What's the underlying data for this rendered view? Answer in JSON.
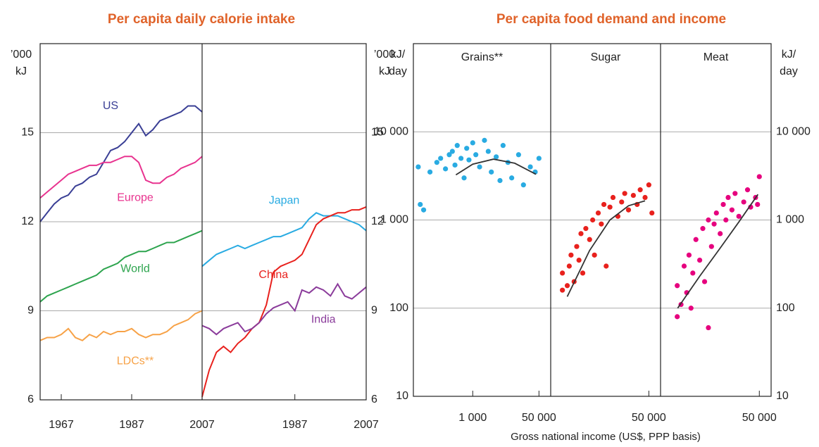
{
  "chart_data": [
    {
      "type": "line",
      "title": "Per capita daily calorie intake",
      "ylabel": [
        "’000",
        "kJ"
      ],
      "ylim": [
        6,
        18
      ],
      "yticks": [
        6,
        9,
        12,
        15
      ],
      "grid": true,
      "panels": [
        {
          "xlim": [
            1961,
            2007
          ],
          "xticks": [
            1967,
            1987,
            2007
          ],
          "x": [
            1961,
            1963,
            1965,
            1967,
            1969,
            1971,
            1973,
            1975,
            1977,
            1979,
            1981,
            1983,
            1985,
            1987,
            1989,
            1991,
            1993,
            1995,
            1997,
            1999,
            2001,
            2003,
            2005,
            2007
          ],
          "series": [
            {
              "name": "US",
              "color": "#3a3f95",
              "values": [
                12.0,
                12.3,
                12.6,
                12.8,
                12.9,
                13.2,
                13.3,
                13.5,
                13.6,
                14.0,
                14.4,
                14.5,
                14.7,
                15.0,
                15.3,
                14.9,
                15.1,
                15.4,
                15.5,
                15.6,
                15.7,
                15.9,
                15.9,
                15.7
              ]
            },
            {
              "name": "Europe",
              "color": "#e8338f",
              "values": [
                12.8,
                13.0,
                13.2,
                13.4,
                13.6,
                13.7,
                13.8,
                13.9,
                13.9,
                14.0,
                14.0,
                14.1,
                14.2,
                14.2,
                14.0,
                13.4,
                13.3,
                13.3,
                13.5,
                13.6,
                13.8,
                13.9,
                14.0,
                14.2
              ]
            },
            {
              "name": "World",
              "color": "#2da44e",
              "values": [
                9.3,
                9.5,
                9.6,
                9.7,
                9.8,
                9.9,
                10.0,
                10.1,
                10.2,
                10.4,
                10.5,
                10.6,
                10.8,
                10.9,
                11.0,
                11.0,
                11.1,
                11.2,
                11.3,
                11.3,
                11.4,
                11.5,
                11.6,
                11.7
              ]
            },
            {
              "name": "LDCs**",
              "color": "#f7a247",
              "values": [
                8.0,
                8.1,
                8.1,
                8.2,
                8.4,
                8.1,
                8.0,
                8.2,
                8.1,
                8.3,
                8.2,
                8.3,
                8.3,
                8.4,
                8.2,
                8.1,
                8.2,
                8.2,
                8.3,
                8.5,
                8.6,
                8.7,
                8.9,
                9.0
              ]
            }
          ]
        },
        {
          "xlim": [
            1961,
            2007
          ],
          "xticks": [
            1987,
            2007
          ],
          "x": [
            1961,
            1963,
            1965,
            1967,
            1969,
            1971,
            1973,
            1975,
            1977,
            1979,
            1981,
            1983,
            1985,
            1987,
            1989,
            1991,
            1993,
            1995,
            1997,
            1999,
            2001,
            2003,
            2005,
            2007
          ],
          "series": [
            {
              "name": "Japan",
              "color": "#29abe2",
              "values": [
                10.5,
                10.7,
                10.9,
                11.0,
                11.1,
                11.2,
                11.1,
                11.2,
                11.3,
                11.4,
                11.5,
                11.5,
                11.6,
                11.7,
                11.8,
                12.1,
                12.3,
                12.2,
                12.2,
                12.2,
                12.1,
                12.0,
                11.9,
                11.7
              ]
            },
            {
              "name": "China",
              "color": "#e8211d",
              "values": [
                6.1,
                7.0,
                7.6,
                7.8,
                7.6,
                7.9,
                8.1,
                8.4,
                8.6,
                9.2,
                10.3,
                10.5,
                10.6,
                10.7,
                10.9,
                11.4,
                11.9,
                12.1,
                12.2,
                12.3,
                12.3,
                12.4,
                12.4,
                12.5
              ]
            },
            {
              "name": "India",
              "color": "#8b3c9b",
              "values": [
                8.5,
                8.4,
                8.2,
                8.4,
                8.5,
                8.6,
                8.3,
                8.4,
                8.6,
                8.9,
                9.1,
                9.2,
                9.3,
                9.0,
                9.7,
                9.6,
                9.8,
                9.7,
                9.5,
                9.9,
                9.5,
                9.4,
                9.6,
                9.8
              ]
            }
          ]
        }
      ]
    },
    {
      "type": "scatter",
      "title": "Per capita food demand and income",
      "xlabel": "Gross national income (US$, PPP basis)",
      "ylabel": [
        "kJ/",
        "day"
      ],
      "log_x": true,
      "log_y": true,
      "ylim": [
        10,
        100000
      ],
      "yticks": [
        10,
        100,
        {
          "value": 1000,
          "label": "1 000"
        },
        {
          "value": 10000,
          "label": "10 000"
        }
      ],
      "grid": true,
      "panels": [
        {
          "title": "Grains**",
          "xlim": [
            30,
            100000
          ],
          "xticks": [
            {
              "value": 1000,
              "label": "1 000"
            },
            {
              "value": 50000,
              "label": "50 000"
            }
          ],
          "points": {
            "color": "#29abe2",
            "x": [
              40,
              45,
              55,
              80,
              120,
              150,
              200,
              250,
              300,
              350,
              400,
              500,
              600,
              700,
              800,
              1000,
              1200,
              1500,
              2000,
              2500,
              3000,
              4000,
              5000,
              6000,
              8000,
              10000,
              15000,
              20000,
              30000,
              40000,
              50000
            ],
            "y": [
              4000,
              1500,
              1300,
              3500,
              4500,
              5000,
              3800,
              5500,
              6000,
              4200,
              7000,
              5000,
              3000,
              6500,
              4800,
              7500,
              5500,
              4000,
              8000,
              6000,
              3500,
              5200,
              2800,
              7000,
              4500,
              3000,
              5500,
              2500,
              4000,
              3500,
              5000
            ]
          },
          "fit": {
            "color": "#333333",
            "x": [
              370,
              1000,
              3400,
              12000,
              42000
            ],
            "y": [
              3250,
              4300,
              4900,
              4400,
              3300
            ]
          }
        },
        {
          "title": "Sugar",
          "xlim": [
            150,
            100000
          ],
          "xticks": [
            {
              "value": 50000,
              "label": "50 000"
            }
          ],
          "points": {
            "color": "#e8211d",
            "x": [
              300,
              300,
              400,
              450,
              500,
              600,
              700,
              800,
              900,
              1000,
              1200,
              1500,
              1800,
              2000,
              2500,
              3000,
              3500,
              4000,
              5000,
              6000,
              8000,
              10000,
              12000,
              15000,
              20000,
              25000,
              30000,
              40000,
              50000,
              60000
            ],
            "y": [
              250,
              160,
              180,
              300,
              400,
              200,
              500,
              350,
              700,
              250,
              800,
              600,
              1000,
              400,
              1200,
              900,
              1500,
              300,
              1400,
              1800,
              1100,
              1600,
              2000,
              1300,
              1900,
              1500,
              2200,
              1800,
              2500,
              1200
            ]
          },
          "fit": {
            "color": "#333333",
            "x": [
              400,
              1500,
              5000,
              15000,
              40000
            ],
            "y": [
              135,
              450,
              1000,
              1450,
              1650
            ]
          }
        },
        {
          "title": "Meat",
          "xlim": [
            150,
            100000
          ],
          "xticks": [
            {
              "value": 50000,
              "label": "50 000"
            }
          ],
          "points": {
            "color": "#e6007e",
            "x": [
              400,
              400,
              500,
              600,
              700,
              800,
              900,
              1000,
              1200,
              1500,
              1800,
              2000,
              2500,
              2500,
              3000,
              3500,
              4000,
              5000,
              6000,
              7000,
              8000,
              10000,
              12000,
              15000,
              20000,
              25000,
              30000,
              40000,
              50000,
              45000
            ],
            "y": [
              80,
              180,
              110,
              300,
              150,
              400,
              100,
              250,
              600,
              350,
              800,
              200,
              1000,
              60,
              500,
              900,
              1200,
              700,
              1500,
              1000,
              1800,
              1300,
              2000,
              1100,
              1600,
              2200,
              1400,
              1800,
              3100,
              1500
            ]
          },
          "fit": {
            "color": "#333333",
            "x": [
              410,
              1500,
              5000,
              15000,
              46000
            ],
            "y": [
              100,
              230,
              480,
              950,
              1950
            ]
          }
        }
      ]
    }
  ]
}
